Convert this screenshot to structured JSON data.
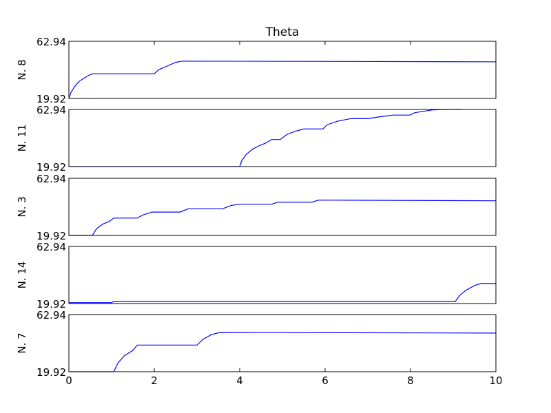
{
  "chart_data": {
    "type": "line",
    "title": "Theta",
    "xlim": [
      0,
      10
    ],
    "ylim": [
      19.92,
      62.94
    ],
    "x_ticks": [
      "0",
      "2",
      "4",
      "6",
      "8",
      "10"
    ],
    "y_tick_labels": [
      "62.94",
      "19.92"
    ],
    "line_color": "#0000ff",
    "grid": false,
    "panels": [
      {
        "ylabel": "N. 8",
        "x": [
          0,
          0.05,
          0.15,
          0.25,
          0.35,
          0.45,
          0.55,
          2.0,
          2.1,
          2.3,
          2.5,
          2.65,
          10
        ],
        "y": [
          19.92,
          24.5,
          29.5,
          33.0,
          35.0,
          37.0,
          38.5,
          38.5,
          41.5,
          44.3,
          47.1,
          48.0,
          47.5
        ]
      },
      {
        "ylabel": "N. 11",
        "x": [
          0,
          4.0,
          4.05,
          4.15,
          4.3,
          4.45,
          4.6,
          4.75,
          4.9,
          4.95,
          5.1,
          5.3,
          5.5,
          5.6,
          5.95,
          6.05,
          6.3,
          6.6,
          7.0,
          7.3,
          7.6,
          7.98,
          8.1,
          8.5,
          8.8,
          9.2
        ],
        "y": [
          19.92,
          19.92,
          24.5,
          29.0,
          33.0,
          35.5,
          37.5,
          40.3,
          40.3,
          40.3,
          44.0,
          46.5,
          48.2,
          48.2,
          48.2,
          51.5,
          54.2,
          56.0,
          56.0,
          57.5,
          58.7,
          58.7,
          60.5,
          62.5,
          62.94,
          62.94
        ]
      },
      {
        "ylabel": "N. 3",
        "x": [
          0,
          0.55,
          0.65,
          0.8,
          0.95,
          1.05,
          1.6,
          1.75,
          1.95,
          2.05,
          2.6,
          2.8,
          3.0,
          3.6,
          3.8,
          4.0,
          4.75,
          4.9,
          5.7,
          5.85,
          10
        ],
        "y": [
          19.92,
          19.92,
          25.0,
          28.5,
          30.5,
          33.0,
          33.0,
          35.5,
          37.5,
          37.5,
          37.5,
          40.0,
          40.0,
          40.0,
          42.5,
          43.4,
          43.4,
          45.0,
          45.0,
          46.5,
          46.0
        ]
      },
      {
        "ylabel": "N. 14",
        "x": [
          0,
          1.0,
          1.05,
          9.05,
          9.15,
          9.3,
          9.5,
          9.65,
          10
        ],
        "y": [
          20.6,
          20.6,
          21.5,
          21.5,
          26.0,
          30.0,
          33.5,
          35.0,
          35.0
        ]
      },
      {
        "ylabel": "N. 7",
        "x": [
          0,
          1.05,
          1.15,
          1.3,
          1.5,
          1.6,
          3.0,
          3.15,
          3.35,
          3.55,
          10
        ],
        "y": [
          19.92,
          19.92,
          26.5,
          32.0,
          36.0,
          40.0,
          40.0,
          44.5,
          48.0,
          49.5,
          49.0
        ]
      }
    ]
  }
}
